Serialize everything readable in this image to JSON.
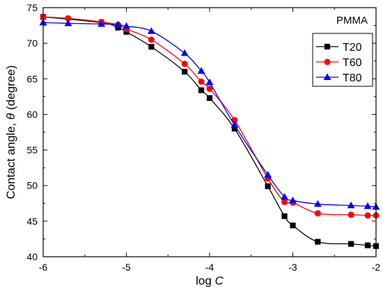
{
  "chart_data": {
    "type": "line",
    "annotation": "PMMA",
    "xlabel": "log C",
    "xlabel_parts": {
      "prefix": "log ",
      "italic": "C"
    },
    "ylabel": "Contact angle, θ (degree)",
    "ylabel_parts": {
      "prefix": "Contact angle, ",
      "italic": "θ",
      "suffix": " (degree)"
    },
    "xlim": [
      -6,
      -2
    ],
    "ylim": [
      40,
      75
    ],
    "x_ticks": [
      -6,
      -5,
      -4,
      -3,
      -2
    ],
    "x_tick_labels": [
      "-6",
      "-5",
      "-4",
      "-3",
      "-2"
    ],
    "y_ticks": [
      40,
      45,
      50,
      55,
      60,
      65,
      70,
      75
    ],
    "y_tick_labels": [
      "40",
      "45",
      "50",
      "55",
      "60",
      "65",
      "70",
      "75"
    ],
    "grid": false,
    "legend_position": "top-right",
    "series": [
      {
        "name": "T20",
        "color": "#000000",
        "marker": "square",
        "points": [
          [
            -6.0,
            73.7
          ],
          [
            -5.3,
            72.9
          ],
          [
            -5.1,
            72.2
          ],
          [
            -5.0,
            71.6
          ],
          [
            -4.7,
            69.5
          ],
          [
            -4.3,
            66.0
          ],
          [
            -4.1,
            63.4
          ],
          [
            -4.0,
            62.3
          ],
          [
            -3.7,
            58.0
          ],
          [
            -3.3,
            49.9
          ],
          [
            -3.1,
            45.7
          ],
          [
            -3.0,
            44.4
          ],
          [
            -2.7,
            42.1
          ],
          [
            -2.3,
            41.8
          ],
          [
            -2.1,
            41.6
          ],
          [
            -2.0,
            41.5
          ]
        ]
      },
      {
        "name": "T60",
        "color": "#ff0000",
        "marker": "circle",
        "points": [
          [
            -6.0,
            73.7
          ],
          [
            -5.7,
            73.5
          ],
          [
            -5.3,
            73.0
          ],
          [
            -5.1,
            72.6
          ],
          [
            -5.0,
            72.0
          ],
          [
            -4.7,
            70.5
          ],
          [
            -4.3,
            67.1
          ],
          [
            -4.1,
            64.6
          ],
          [
            -4.0,
            63.6
          ],
          [
            -3.7,
            59.2
          ],
          [
            -3.3,
            51.0
          ],
          [
            -3.1,
            47.7
          ],
          [
            -3.0,
            47.6
          ],
          [
            -2.7,
            46.1
          ],
          [
            -2.3,
            45.9
          ],
          [
            -2.1,
            45.8
          ],
          [
            -2.0,
            45.8
          ]
        ]
      },
      {
        "name": "T80",
        "color": "#0000ff",
        "marker": "triangle",
        "points": [
          [
            -6.0,
            72.9
          ],
          [
            -5.7,
            72.8
          ],
          [
            -5.3,
            72.7
          ],
          [
            -5.1,
            72.6
          ],
          [
            -5.0,
            72.4
          ],
          [
            -4.7,
            71.7
          ],
          [
            -4.3,
            68.6
          ],
          [
            -4.1,
            66.1
          ],
          [
            -4.0,
            64.5
          ],
          [
            -3.7,
            58.5
          ],
          [
            -3.3,
            51.5
          ],
          [
            -3.1,
            48.4
          ],
          [
            -3.0,
            47.9
          ],
          [
            -2.7,
            47.4
          ],
          [
            -2.3,
            47.2
          ],
          [
            -2.1,
            47.1
          ],
          [
            -2.0,
            47.0
          ]
        ]
      }
    ]
  }
}
